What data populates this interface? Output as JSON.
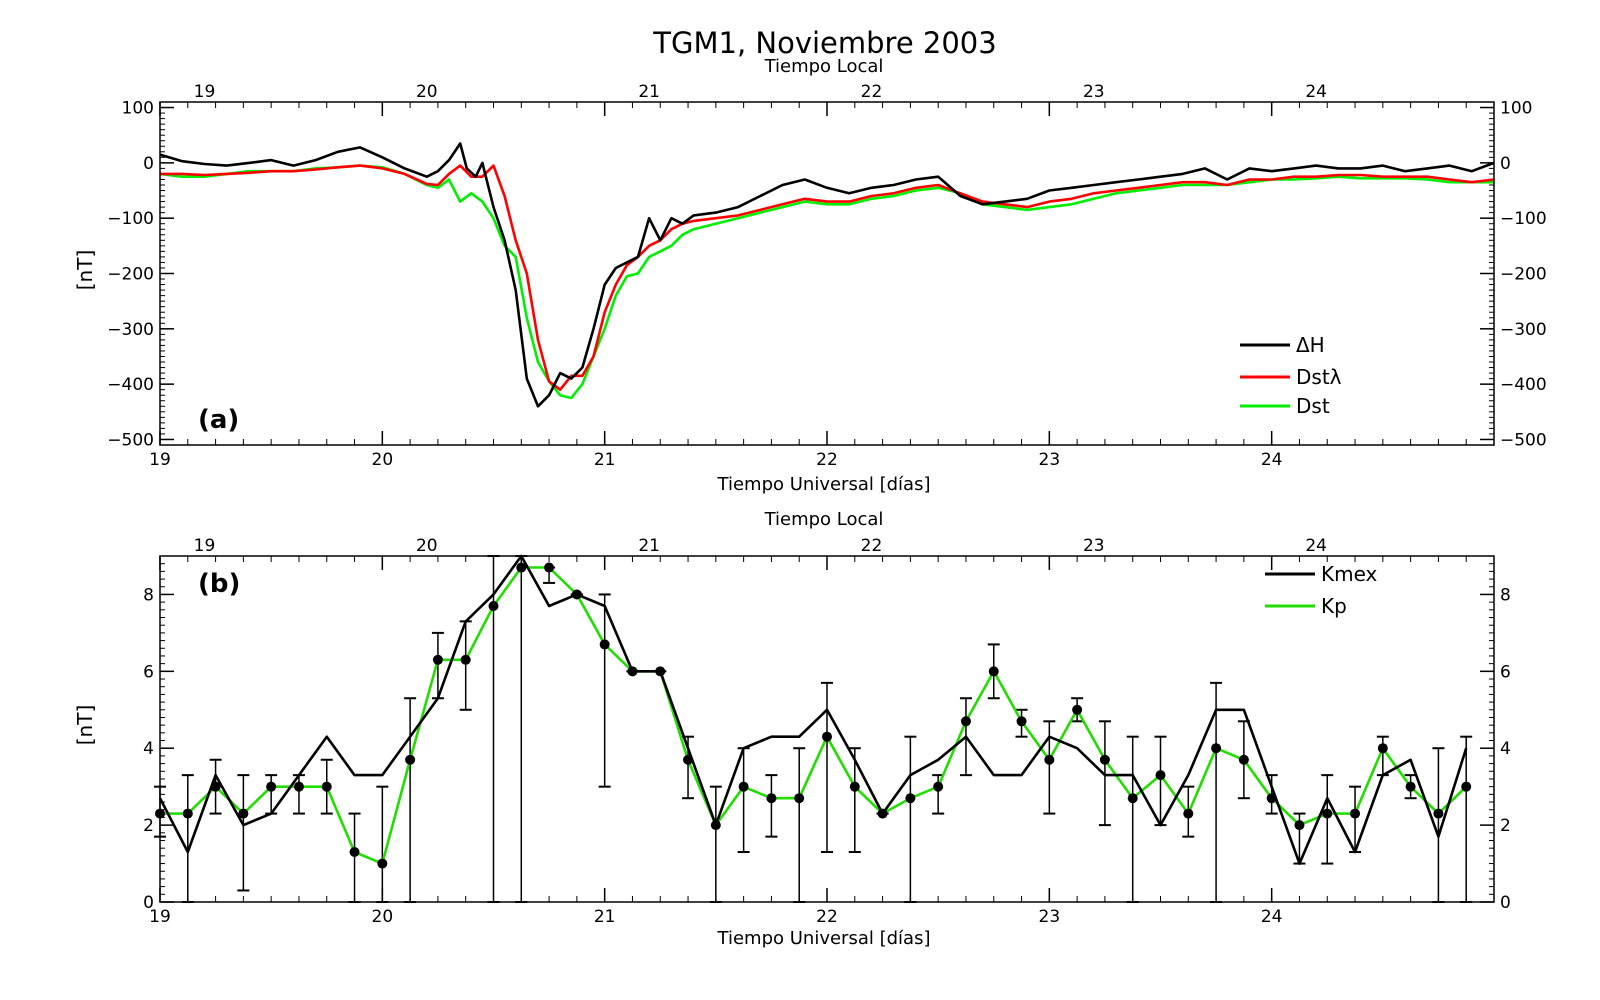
{
  "figure": {
    "title": "TGM1, Noviembre 2003"
  },
  "chart_data": [
    {
      "type": "line",
      "panel_label": "(a)",
      "xlabel": "Tiempo Universal [días]",
      "x2label": "Tiempo Local",
      "ylabel": "[nT]",
      "xlim": [
        19,
        25
      ],
      "ylim": [
        -510,
        110
      ],
      "x_ticks": [
        19,
        20,
        21,
        22,
        23,
        24
      ],
      "local_ticks": [
        "19",
        "20",
        "21",
        "22",
        "23",
        "24"
      ],
      "y_ticks": [
        -500,
        -400,
        -300,
        -200,
        -100,
        0,
        100
      ],
      "y_tick_labels": [
        "−500",
        "−400",
        "−300",
        "−200",
        "−100",
        "0",
        "100"
      ],
      "legend_position": "bottom-right",
      "series": [
        {
          "name": "ΔH",
          "color": "#000000",
          "x": [
            19.0,
            19.1,
            19.2,
            19.3,
            19.4,
            19.5,
            19.6,
            19.7,
            19.8,
            19.9,
            20.0,
            20.1,
            20.2,
            20.25,
            20.3,
            20.35,
            20.38,
            20.42,
            20.45,
            20.5,
            20.55,
            20.6,
            20.65,
            20.7,
            20.75,
            20.8,
            20.85,
            20.9,
            20.95,
            21.0,
            21.05,
            21.1,
            21.15,
            21.2,
            21.25,
            21.3,
            21.35,
            21.4,
            21.5,
            21.6,
            21.7,
            21.8,
            21.9,
            22.0,
            22.1,
            22.2,
            22.3,
            22.4,
            22.5,
            22.6,
            22.7,
            22.8,
            22.9,
            23.0,
            23.1,
            23.2,
            23.3,
            23.4,
            23.5,
            23.6,
            23.7,
            23.8,
            23.9,
            24.0,
            24.1,
            24.2,
            24.3,
            24.4,
            24.5,
            24.6,
            24.7,
            24.8,
            24.9,
            25.0
          ],
          "y": [
            15,
            3,
            -2,
            -5,
            0,
            5,
            -5,
            5,
            20,
            28,
            10,
            -10,
            -25,
            -15,
            5,
            35,
            -10,
            -25,
            0,
            -80,
            -140,
            -230,
            -390,
            -440,
            -420,
            -380,
            -390,
            -370,
            -300,
            -220,
            -190,
            -180,
            -170,
            -100,
            -140,
            -100,
            -110,
            -95,
            -90,
            -80,
            -60,
            -40,
            -30,
            -45,
            -55,
            -45,
            -40,
            -30,
            -25,
            -60,
            -75,
            -70,
            -65,
            -50,
            -45,
            -40,
            -35,
            -30,
            -25,
            -20,
            -10,
            -30,
            -10,
            -15,
            -10,
            -5,
            -10,
            -10,
            -5,
            -15,
            -10,
            -5,
            -15,
            0
          ]
        },
        {
          "name": "Dstλ",
          "color": "#ff0000",
          "x": [
            19.0,
            19.1,
            19.2,
            19.3,
            19.4,
            19.5,
            19.6,
            19.7,
            19.8,
            19.9,
            20.0,
            20.1,
            20.2,
            20.25,
            20.3,
            20.35,
            20.4,
            20.45,
            20.5,
            20.55,
            20.6,
            20.65,
            20.7,
            20.75,
            20.8,
            20.85,
            20.9,
            20.95,
            21.0,
            21.05,
            21.1,
            21.15,
            21.2,
            21.25,
            21.3,
            21.35,
            21.4,
            21.5,
            21.6,
            21.7,
            21.8,
            21.9,
            22.0,
            22.1,
            22.2,
            22.3,
            22.4,
            22.5,
            22.6,
            22.7,
            22.8,
            22.9,
            23.0,
            23.1,
            23.2,
            23.3,
            23.4,
            23.5,
            23.6,
            23.7,
            23.8,
            23.9,
            24.0,
            24.1,
            24.2,
            24.3,
            24.4,
            24.5,
            24.6,
            24.7,
            24.8,
            24.9,
            25.0
          ],
          "y": [
            -20,
            -20,
            -22,
            -20,
            -18,
            -15,
            -15,
            -12,
            -8,
            -5,
            -10,
            -20,
            -38,
            -40,
            -20,
            -5,
            -25,
            -25,
            -5,
            -60,
            -140,
            -200,
            -320,
            -395,
            -410,
            -385,
            -385,
            -350,
            -270,
            -220,
            -185,
            -170,
            -150,
            -140,
            -120,
            -110,
            -105,
            -100,
            -95,
            -85,
            -75,
            -65,
            -70,
            -70,
            -60,
            -55,
            -45,
            -40,
            -55,
            -70,
            -75,
            -80,
            -70,
            -65,
            -55,
            -50,
            -45,
            -40,
            -35,
            -35,
            -40,
            -30,
            -30,
            -25,
            -25,
            -22,
            -22,
            -25,
            -25,
            -25,
            -30,
            -35,
            -30
          ]
        },
        {
          "name": "Dst",
          "color": "#00ee00",
          "x": [
            19.0,
            19.1,
            19.2,
            19.3,
            19.4,
            19.5,
            19.6,
            19.7,
            19.8,
            19.9,
            20.0,
            20.1,
            20.2,
            20.25,
            20.3,
            20.35,
            20.4,
            20.45,
            20.5,
            20.55,
            20.6,
            20.65,
            20.7,
            20.75,
            20.8,
            20.85,
            20.9,
            20.95,
            21.0,
            21.05,
            21.1,
            21.15,
            21.2,
            21.25,
            21.3,
            21.35,
            21.4,
            21.5,
            21.6,
            21.7,
            21.8,
            21.9,
            22.0,
            22.1,
            22.2,
            22.3,
            22.4,
            22.5,
            22.6,
            22.7,
            22.8,
            22.9,
            23.0,
            23.1,
            23.2,
            23.3,
            23.4,
            23.5,
            23.6,
            23.7,
            23.8,
            23.9,
            24.0,
            24.1,
            24.2,
            24.3,
            24.4,
            24.5,
            24.6,
            24.7,
            24.8,
            24.9,
            25.0
          ],
          "y": [
            -20,
            -25,
            -25,
            -20,
            -15,
            -15,
            -15,
            -10,
            -8,
            -5,
            -8,
            -20,
            -40,
            -45,
            -30,
            -70,
            -55,
            -70,
            -100,
            -150,
            -170,
            -280,
            -360,
            -395,
            -420,
            -425,
            -400,
            -350,
            -300,
            -240,
            -205,
            -200,
            -170,
            -160,
            -150,
            -130,
            -120,
            -110,
            -100,
            -90,
            -80,
            -70,
            -75,
            -75,
            -65,
            -60,
            -50,
            -45,
            -55,
            -75,
            -80,
            -85,
            -80,
            -75,
            -65,
            -55,
            -50,
            -45,
            -40,
            -40,
            -40,
            -35,
            -30,
            -30,
            -28,
            -25,
            -28,
            -28,
            -28,
            -30,
            -35,
            -35,
            -35
          ]
        }
      ]
    },
    {
      "type": "line",
      "panel_label": "(b)",
      "xlabel": "Tiempo Universal [días]",
      "x2label": "Tiempo Local",
      "ylabel": "[nT]",
      "xlim": [
        19,
        25
      ],
      "ylim": [
        0,
        9
      ],
      "x_ticks": [
        19,
        20,
        21,
        22,
        23,
        24
      ],
      "local_ticks": [
        "19",
        "20",
        "21",
        "22",
        "23",
        "24"
      ],
      "y_ticks": [
        0,
        2,
        4,
        6,
        8
      ],
      "y_tick_labels": [
        "0",
        "2",
        "4",
        "6",
        "8"
      ],
      "legend_position": "top-right",
      "series": [
        {
          "name": "Kmex",
          "color": "#000000",
          "x": [
            19.0,
            19.125,
            19.25,
            19.375,
            19.5,
            19.625,
            19.75,
            19.875,
            20.0,
            20.125,
            20.25,
            20.375,
            20.5,
            20.625,
            20.75,
            20.875,
            21.0,
            21.125,
            21.25,
            21.375,
            21.5,
            21.625,
            21.75,
            21.875,
            22.0,
            22.125,
            22.25,
            22.375,
            22.5,
            22.625,
            22.75,
            22.875,
            23.0,
            23.125,
            23.25,
            23.375,
            23.5,
            23.625,
            23.75,
            23.875,
            24.0,
            24.125,
            24.25,
            24.375,
            24.5,
            24.625,
            24.75,
            24.875
          ],
          "y": [
            2.7,
            1.3,
            3.3,
            2.0,
            2.3,
            3.3,
            4.3,
            3.3,
            3.3,
            4.3,
            5.3,
            7.3,
            8.0,
            9.0,
            7.7,
            8.0,
            7.7,
            6.0,
            6.0,
            4.0,
            2.0,
            4.0,
            4.3,
            4.3,
            5.0,
            3.7,
            2.3,
            3.3,
            3.7,
            4.3,
            3.3,
            3.3,
            4.3,
            4.0,
            3.3,
            3.3,
            2.0,
            3.3,
            5.0,
            5.0,
            3.0,
            1.0,
            2.7,
            1.3,
            3.3,
            3.7,
            1.7,
            4.0
          ]
        },
        {
          "name": "Kp",
          "color": "#22dd00",
          "x": [
            19.0,
            19.125,
            19.25,
            19.375,
            19.5,
            19.625,
            19.75,
            19.875,
            20.0,
            20.125,
            20.25,
            20.375,
            20.5,
            20.625,
            20.75,
            20.875,
            21.0,
            21.125,
            21.25,
            21.375,
            21.5,
            21.625,
            21.75,
            21.875,
            22.0,
            22.125,
            22.25,
            22.375,
            22.5,
            22.625,
            22.75,
            22.875,
            23.0,
            23.125,
            23.25,
            23.375,
            23.5,
            23.625,
            23.75,
            23.875,
            24.0,
            24.125,
            24.25,
            24.375,
            24.5,
            24.625,
            24.75,
            24.875
          ],
          "y": [
            2.3,
            2.3,
            3.0,
            2.3,
            3.0,
            3.0,
            3.0,
            1.3,
            1.0,
            3.7,
            6.3,
            6.3,
            7.7,
            8.7,
            8.7,
            8.0,
            6.7,
            6.0,
            6.0,
            3.7,
            2.0,
            3.0,
            2.7,
            2.7,
            4.3,
            3.0,
            2.3,
            2.7,
            3.0,
            4.7,
            6.0,
            4.7,
            3.7,
            5.0,
            3.7,
            2.7,
            3.3,
            2.3,
            4.0,
            3.7,
            2.7,
            2.0,
            2.3,
            2.3,
            4.0,
            3.0,
            2.3,
            3.0
          ]
        }
      ],
      "error_bars": {
        "x": [
          19.0,
          19.125,
          19.25,
          19.375,
          19.5,
          19.625,
          19.75,
          19.875,
          20.0,
          20.125,
          20.25,
          20.375,
          20.5,
          20.625,
          20.75,
          20.875,
          21.0,
          21.125,
          21.25,
          21.375,
          21.5,
          21.625,
          21.75,
          21.875,
          22.0,
          22.125,
          22.25,
          22.375,
          22.5,
          22.625,
          22.75,
          22.875,
          23.0,
          23.125,
          23.25,
          23.375,
          23.5,
          23.625,
          23.75,
          23.875,
          24.0,
          24.125,
          24.25,
          24.375,
          24.5,
          24.625,
          24.75,
          24.875
        ],
        "low": [
          1.7,
          0.0,
          2.3,
          0.3,
          2.3,
          2.3,
          2.3,
          0.0,
          0.0,
          0.0,
          5.3,
          5.0,
          0.0,
          0.0,
          8.3,
          8.0,
          3.0,
          6.0,
          6.0,
          2.7,
          0.0,
          1.3,
          1.7,
          0.0,
          1.3,
          1.3,
          2.3,
          0.0,
          2.3,
          3.3,
          5.3,
          4.3,
          2.3,
          4.7,
          2.0,
          0.0,
          2.0,
          1.7,
          0.0,
          2.7,
          2.3,
          1.0,
          1.0,
          1.3,
          3.3,
          2.7,
          0.0,
          0.0
        ],
        "high": [
          3.0,
          3.3,
          3.7,
          3.3,
          3.3,
          3.3,
          3.7,
          2.3,
          3.0,
          5.3,
          7.0,
          7.3,
          9.0,
          9.0,
          8.7,
          8.0,
          8.0,
          6.0,
          6.0,
          4.3,
          3.0,
          4.0,
          3.3,
          4.0,
          5.7,
          4.0,
          2.3,
          4.3,
          3.3,
          5.3,
          6.7,
          5.0,
          4.7,
          5.3,
          4.7,
          4.3,
          4.3,
          3.0,
          5.7,
          4.7,
          3.3,
          2.3,
          3.3,
          3.0,
          4.3,
          3.3,
          4.0,
          4.3
        ]
      }
    }
  ]
}
